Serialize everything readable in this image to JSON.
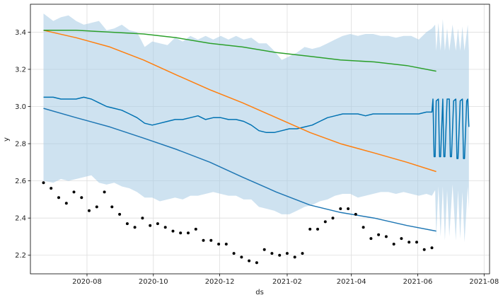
{
  "chart_data": {
    "type": "line",
    "xlabel": "ds",
    "ylabel": "y",
    "grid": true,
    "x_axis": {
      "type": "date",
      "range": [
        "2020-06-10",
        "2021-08-06"
      ],
      "ticks": [
        {
          "date": "2020-08-01",
          "label": "2020-08"
        },
        {
          "date": "2020-10-01",
          "label": "2020-10"
        },
        {
          "date": "2020-12-01",
          "label": "2020-12"
        },
        {
          "date": "2021-02-01",
          "label": "2021-02"
        },
        {
          "date": "2021-04-01",
          "label": "2021-04"
        },
        {
          "date": "2021-06-01",
          "label": "2021-06"
        },
        {
          "date": "2021-08-01",
          "label": "2021-08"
        }
      ]
    },
    "y_axis": {
      "range": [
        2.1,
        3.55
      ],
      "ticks": [
        {
          "value": 2.2,
          "label": "2.2"
        },
        {
          "value": 2.4,
          "label": "2.4"
        },
        {
          "value": 2.6,
          "label": "2.6"
        },
        {
          "value": 2.8,
          "label": "2.8"
        },
        {
          "value": 3.0,
          "label": "3.0"
        },
        {
          "value": 3.2,
          "label": "3.2"
        },
        {
          "value": 3.4,
          "label": "3.4"
        }
      ]
    },
    "colors": {
      "band": "#a6cbe3",
      "forecast": "#0072b2",
      "trend": "#1f77b4",
      "orange": "#ff7f0e",
      "green": "#2ca02c",
      "points": "#000000",
      "grid": "#dddddd"
    },
    "uncertainty_upper": [
      [
        "2020-06-22",
        3.5
      ],
      [
        "2020-07-01",
        3.46
      ],
      [
        "2020-07-08",
        3.48
      ],
      [
        "2020-07-15",
        3.49
      ],
      [
        "2020-07-22",
        3.46
      ],
      [
        "2020-07-29",
        3.44
      ],
      [
        "2020-08-05",
        3.45
      ],
      [
        "2020-08-12",
        3.46
      ],
      [
        "2020-08-19",
        3.41
      ],
      [
        "2020-08-26",
        3.42
      ],
      [
        "2020-09-02",
        3.44
      ],
      [
        "2020-09-09",
        3.41
      ],
      [
        "2020-09-16",
        3.4
      ],
      [
        "2020-09-23",
        3.32
      ],
      [
        "2020-09-30",
        3.35
      ],
      [
        "2020-10-07",
        3.34
      ],
      [
        "2020-10-14",
        3.33
      ],
      [
        "2020-10-21",
        3.37
      ],
      [
        "2020-10-28",
        3.35
      ],
      [
        "2020-11-04",
        3.38
      ],
      [
        "2020-11-11",
        3.36
      ],
      [
        "2020-11-18",
        3.38
      ],
      [
        "2020-11-25",
        3.36
      ],
      [
        "2020-12-02",
        3.38
      ],
      [
        "2020-12-09",
        3.36
      ],
      [
        "2020-12-16",
        3.38
      ],
      [
        "2020-12-23",
        3.36
      ],
      [
        "2020-12-30",
        3.37
      ],
      [
        "2021-01-06",
        3.34
      ],
      [
        "2021-01-13",
        3.34
      ],
      [
        "2021-01-20",
        3.3
      ],
      [
        "2021-01-27",
        3.25
      ],
      [
        "2021-02-03",
        3.27
      ],
      [
        "2021-02-10",
        3.29
      ],
      [
        "2021-02-17",
        3.32
      ],
      [
        "2021-02-24",
        3.31
      ],
      [
        "2021-03-03",
        3.32
      ],
      [
        "2021-03-10",
        3.34
      ],
      [
        "2021-03-17",
        3.36
      ],
      [
        "2021-03-24",
        3.38
      ],
      [
        "2021-03-31",
        3.39
      ],
      [
        "2021-04-07",
        3.38
      ],
      [
        "2021-04-14",
        3.39
      ],
      [
        "2021-04-21",
        3.39
      ],
      [
        "2021-04-28",
        3.38
      ],
      [
        "2021-05-05",
        3.38
      ],
      [
        "2021-05-12",
        3.37
      ],
      [
        "2021-05-19",
        3.38
      ],
      [
        "2021-05-26",
        3.38
      ],
      [
        "2021-06-02",
        3.36
      ],
      [
        "2021-06-09",
        3.4
      ],
      [
        "2021-06-14",
        3.42
      ],
      [
        "2021-06-17",
        3.44
      ],
      [
        "2021-06-18",
        3.3
      ],
      [
        "2021-06-20",
        3.45
      ],
      [
        "2021-06-22",
        3.3
      ],
      [
        "2021-06-24",
        3.47
      ],
      [
        "2021-06-26",
        3.3
      ],
      [
        "2021-06-28",
        3.42
      ],
      [
        "2021-06-30",
        3.3
      ],
      [
        "2021-07-03",
        3.44
      ],
      [
        "2021-07-06",
        3.3
      ],
      [
        "2021-07-08",
        3.42
      ],
      [
        "2021-07-10",
        3.3
      ],
      [
        "2021-07-12",
        3.43
      ],
      [
        "2021-07-14",
        3.3
      ],
      [
        "2021-07-17",
        3.44
      ],
      [
        "2021-07-18",
        3.3
      ]
    ],
    "uncertainty_lower": [
      [
        "2020-06-22",
        2.6
      ],
      [
        "2020-07-01",
        2.59
      ],
      [
        "2020-07-08",
        2.61
      ],
      [
        "2020-07-15",
        2.6
      ],
      [
        "2020-07-22",
        2.61
      ],
      [
        "2020-07-29",
        2.62
      ],
      [
        "2020-08-05",
        2.63
      ],
      [
        "2020-08-12",
        2.59
      ],
      [
        "2020-08-19",
        2.58
      ],
      [
        "2020-08-26",
        2.59
      ],
      [
        "2020-09-02",
        2.57
      ],
      [
        "2020-09-09",
        2.56
      ],
      [
        "2020-09-16",
        2.54
      ],
      [
        "2020-09-23",
        2.51
      ],
      [
        "2020-09-30",
        2.51
      ],
      [
        "2020-10-07",
        2.49
      ],
      [
        "2020-10-14",
        2.5
      ],
      [
        "2020-10-21",
        2.51
      ],
      [
        "2020-10-28",
        2.5
      ],
      [
        "2020-11-04",
        2.52
      ],
      [
        "2020-11-11",
        2.52
      ],
      [
        "2020-11-18",
        2.53
      ],
      [
        "2020-11-25",
        2.54
      ],
      [
        "2020-12-02",
        2.53
      ],
      [
        "2020-12-09",
        2.52
      ],
      [
        "2020-12-16",
        2.52
      ],
      [
        "2020-12-23",
        2.5
      ],
      [
        "2020-12-30",
        2.5
      ],
      [
        "2021-01-06",
        2.46
      ],
      [
        "2021-01-13",
        2.45
      ],
      [
        "2021-01-20",
        2.44
      ],
      [
        "2021-01-27",
        2.42
      ],
      [
        "2021-02-03",
        2.42
      ],
      [
        "2021-02-10",
        2.44
      ],
      [
        "2021-02-17",
        2.46
      ],
      [
        "2021-02-24",
        2.47
      ],
      [
        "2021-03-03",
        2.49
      ],
      [
        "2021-03-10",
        2.5
      ],
      [
        "2021-03-17",
        2.52
      ],
      [
        "2021-03-24",
        2.53
      ],
      [
        "2021-03-31",
        2.53
      ],
      [
        "2021-04-07",
        2.51
      ],
      [
        "2021-04-14",
        2.52
      ],
      [
        "2021-04-21",
        2.53
      ],
      [
        "2021-04-28",
        2.54
      ],
      [
        "2021-05-05",
        2.54
      ],
      [
        "2021-05-12",
        2.53
      ],
      [
        "2021-05-19",
        2.54
      ],
      [
        "2021-05-26",
        2.53
      ],
      [
        "2021-06-02",
        2.52
      ],
      [
        "2021-06-09",
        2.53
      ],
      [
        "2021-06-14",
        2.52
      ],
      [
        "2021-06-17",
        2.55
      ],
      [
        "2021-06-18",
        2.3
      ],
      [
        "2021-06-20",
        2.57
      ],
      [
        "2021-06-22",
        2.3
      ],
      [
        "2021-06-24",
        2.57
      ],
      [
        "2021-06-26",
        2.28
      ],
      [
        "2021-06-28",
        2.55
      ],
      [
        "2021-06-30",
        2.3
      ],
      [
        "2021-07-03",
        2.58
      ],
      [
        "2021-07-06",
        2.28
      ],
      [
        "2021-07-08",
        2.55
      ],
      [
        "2021-07-10",
        2.29
      ],
      [
        "2021-07-12",
        2.54
      ],
      [
        "2021-07-14",
        2.27
      ],
      [
        "2021-07-17",
        2.57
      ],
      [
        "2021-07-18",
        2.45
      ]
    ],
    "series": [
      {
        "key": "forecast",
        "points": [
          [
            "2020-06-22",
            3.05
          ],
          [
            "2020-07-01",
            3.05
          ],
          [
            "2020-07-08",
            3.04
          ],
          [
            "2020-07-15",
            3.04
          ],
          [
            "2020-07-22",
            3.04
          ],
          [
            "2020-07-29",
            3.05
          ],
          [
            "2020-08-05",
            3.04
          ],
          [
            "2020-08-12",
            3.02
          ],
          [
            "2020-08-19",
            3.0
          ],
          [
            "2020-08-26",
            2.99
          ],
          [
            "2020-09-02",
            2.98
          ],
          [
            "2020-09-09",
            2.96
          ],
          [
            "2020-09-16",
            2.94
          ],
          [
            "2020-09-23",
            2.91
          ],
          [
            "2020-09-30",
            2.9
          ],
          [
            "2020-10-07",
            2.91
          ],
          [
            "2020-10-14",
            2.92
          ],
          [
            "2020-10-21",
            2.93
          ],
          [
            "2020-10-28",
            2.93
          ],
          [
            "2020-11-04",
            2.94
          ],
          [
            "2020-11-11",
            2.95
          ],
          [
            "2020-11-18",
            2.93
          ],
          [
            "2020-11-25",
            2.94
          ],
          [
            "2020-12-02",
            2.94
          ],
          [
            "2020-12-09",
            2.93
          ],
          [
            "2020-12-16",
            2.93
          ],
          [
            "2020-12-23",
            2.92
          ],
          [
            "2020-12-30",
            2.9
          ],
          [
            "2021-01-06",
            2.87
          ],
          [
            "2021-01-13",
            2.86
          ],
          [
            "2021-01-20",
            2.86
          ],
          [
            "2021-01-27",
            2.87
          ],
          [
            "2021-02-03",
            2.88
          ],
          [
            "2021-02-10",
            2.88
          ],
          [
            "2021-02-17",
            2.89
          ],
          [
            "2021-02-24",
            2.9
          ],
          [
            "2021-03-03",
            2.92
          ],
          [
            "2021-03-10",
            2.94
          ],
          [
            "2021-03-17",
            2.95
          ],
          [
            "2021-03-24",
            2.96
          ],
          [
            "2021-03-31",
            2.96
          ],
          [
            "2021-04-07",
            2.96
          ],
          [
            "2021-04-14",
            2.95
          ],
          [
            "2021-04-21",
            2.96
          ],
          [
            "2021-04-28",
            2.96
          ],
          [
            "2021-05-05",
            2.96
          ],
          [
            "2021-05-12",
            2.96
          ],
          [
            "2021-05-19",
            2.96
          ],
          [
            "2021-05-26",
            2.96
          ],
          [
            "2021-06-02",
            2.96
          ],
          [
            "2021-06-09",
            2.97
          ],
          [
            "2021-06-14",
            2.97
          ],
          [
            "2021-06-15",
            3.04
          ],
          [
            "2021-06-16",
            2.73
          ],
          [
            "2021-06-17",
            2.73
          ],
          [
            "2021-06-18",
            3.03
          ],
          [
            "2021-06-20",
            3.04
          ],
          [
            "2021-06-21",
            2.73
          ],
          [
            "2021-06-22",
            2.73
          ],
          [
            "2021-06-24",
            3.04
          ],
          [
            "2021-06-25",
            2.73
          ],
          [
            "2021-06-26",
            2.73
          ],
          [
            "2021-06-28",
            3.04
          ],
          [
            "2021-06-30",
            3.04
          ],
          [
            "2021-07-01",
            2.73
          ],
          [
            "2021-07-02",
            2.73
          ],
          [
            "2021-07-04",
            3.03
          ],
          [
            "2021-07-06",
            3.04
          ],
          [
            "2021-07-07",
            2.72
          ],
          [
            "2021-07-08",
            2.72
          ],
          [
            "2021-07-10",
            3.03
          ],
          [
            "2021-07-12",
            3.04
          ],
          [
            "2021-07-13",
            2.72
          ],
          [
            "2021-07-14",
            2.72
          ],
          [
            "2021-07-16",
            3.03
          ],
          [
            "2021-07-17",
            3.04
          ],
          [
            "2021-07-18",
            2.89
          ]
        ]
      },
      {
        "key": "trend",
        "points": [
          [
            "2020-06-22",
            2.99
          ],
          [
            "2020-07-22",
            2.94
          ],
          [
            "2020-08-22",
            2.89
          ],
          [
            "2020-09-22",
            2.83
          ],
          [
            "2020-10-22",
            2.77
          ],
          [
            "2020-11-22",
            2.7
          ],
          [
            "2020-12-22",
            2.62
          ],
          [
            "2021-01-22",
            2.54
          ],
          [
            "2021-02-22",
            2.47
          ],
          [
            "2021-03-22",
            2.43
          ],
          [
            "2021-04-22",
            2.4
          ],
          [
            "2021-05-22",
            2.36
          ],
          [
            "2021-06-18",
            2.33
          ]
        ]
      },
      {
        "key": "orange",
        "points": [
          [
            "2020-06-22",
            3.41
          ],
          [
            "2020-07-22",
            3.37
          ],
          [
            "2020-08-22",
            3.32
          ],
          [
            "2020-09-22",
            3.25
          ],
          [
            "2020-10-22",
            3.17
          ],
          [
            "2020-11-22",
            3.09
          ],
          [
            "2020-12-22",
            3.02
          ],
          [
            "2021-01-22",
            2.94
          ],
          [
            "2021-02-22",
            2.86
          ],
          [
            "2021-03-22",
            2.8
          ],
          [
            "2021-04-22",
            2.75
          ],
          [
            "2021-05-22",
            2.7
          ],
          [
            "2021-06-18",
            2.65
          ]
        ]
      },
      {
        "key": "green",
        "points": [
          [
            "2020-06-22",
            3.41
          ],
          [
            "2020-07-22",
            3.41
          ],
          [
            "2020-08-22",
            3.4
          ],
          [
            "2020-09-22",
            3.39
          ],
          [
            "2020-10-22",
            3.37
          ],
          [
            "2020-11-22",
            3.34
          ],
          [
            "2020-12-22",
            3.32
          ],
          [
            "2021-01-22",
            3.29
          ],
          [
            "2021-02-22",
            3.27
          ],
          [
            "2021-03-22",
            3.25
          ],
          [
            "2021-04-22",
            3.24
          ],
          [
            "2021-05-22",
            3.22
          ],
          [
            "2021-06-18",
            3.19
          ]
        ]
      }
    ],
    "observations": [
      [
        "2020-06-22",
        2.59
      ],
      [
        "2020-06-29",
        2.56
      ],
      [
        "2020-07-06",
        2.51
      ],
      [
        "2020-07-13",
        2.48
      ],
      [
        "2020-07-20",
        2.54
      ],
      [
        "2020-07-27",
        2.51
      ],
      [
        "2020-08-03",
        2.44
      ],
      [
        "2020-08-10",
        2.46
      ],
      [
        "2020-08-17",
        2.54
      ],
      [
        "2020-08-24",
        2.46
      ],
      [
        "2020-08-31",
        2.42
      ],
      [
        "2020-09-07",
        2.37
      ],
      [
        "2020-09-14",
        2.35
      ],
      [
        "2020-09-21",
        2.4
      ],
      [
        "2020-09-28",
        2.36
      ],
      [
        "2020-10-05",
        2.37
      ],
      [
        "2020-10-12",
        2.35
      ],
      [
        "2020-10-19",
        2.33
      ],
      [
        "2020-10-26",
        2.32
      ],
      [
        "2020-11-02",
        2.32
      ],
      [
        "2020-11-09",
        2.34
      ],
      [
        "2020-11-16",
        2.28
      ],
      [
        "2020-11-23",
        2.28
      ],
      [
        "2020-11-30",
        2.26
      ],
      [
        "2020-12-07",
        2.26
      ],
      [
        "2020-12-14",
        2.21
      ],
      [
        "2020-12-21",
        2.19
      ],
      [
        "2020-12-28",
        2.17
      ],
      [
        "2021-01-04",
        2.16
      ],
      [
        "2021-01-11",
        2.23
      ],
      [
        "2021-01-18",
        2.21
      ],
      [
        "2021-01-25",
        2.2
      ],
      [
        "2021-02-01",
        2.21
      ],
      [
        "2021-02-08",
        2.19
      ],
      [
        "2021-02-15",
        2.21
      ],
      [
        "2021-02-22",
        2.34
      ],
      [
        "2021-03-01",
        2.34
      ],
      [
        "2021-03-08",
        2.38
      ],
      [
        "2021-03-15",
        2.4
      ],
      [
        "2021-03-22",
        2.45
      ],
      [
        "2021-03-29",
        2.45
      ],
      [
        "2021-04-05",
        2.42
      ],
      [
        "2021-04-12",
        2.35
      ],
      [
        "2021-04-19",
        2.29
      ],
      [
        "2021-04-26",
        2.31
      ],
      [
        "2021-05-03",
        2.3
      ],
      [
        "2021-05-10",
        2.26
      ],
      [
        "2021-05-17",
        2.29
      ],
      [
        "2021-05-24",
        2.27
      ],
      [
        "2021-05-31",
        2.27
      ],
      [
        "2021-06-07",
        2.23
      ],
      [
        "2021-06-14",
        2.24
      ]
    ]
  }
}
